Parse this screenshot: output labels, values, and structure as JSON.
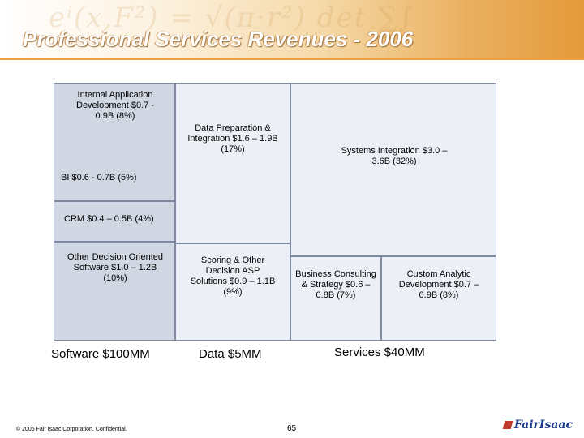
{
  "slide": {
    "title": "Professional Services Revenues - 2006",
    "page_number": "65",
    "footer": "© 2006 Fair Isaac Corporation. Confidential.",
    "logo_text": "FairIsaac"
  },
  "treemap": {
    "internal_app": "Internal Application Development $0.7 - 0.9B (8%)",
    "bi": "BI $0.6 - 0.7B (5%)",
    "crm": "CRM $0.4 – 0.5B (4%)",
    "other_decision": "Other Decision Oriented Software $1.0 – 1.2B (10%)",
    "data_prep": "Data Preparation & Integration $1.6 – 1.9B (17%)",
    "scoring": "Scoring & Other Decision ASP Solutions $0.9 – 1.1B (9%)",
    "systems_integration": "Systems Integration $3.0 – 3.6B (32%)",
    "business_consulting": "Business Consulting & Strategy $0.6 – 0.8B (7%)",
    "custom_analytic": "Custom Analytic Development $0.7 – 0.9B (8%)"
  },
  "category_labels": {
    "software": "Software $100MM",
    "data": "Data $5MM",
    "services": "Services $40MM"
  },
  "colors": {
    "software_fill": "#d0d7e2",
    "services_fill": "#ecf0f6",
    "border": "#7e8aa4",
    "accent": "#e49a3a"
  }
}
